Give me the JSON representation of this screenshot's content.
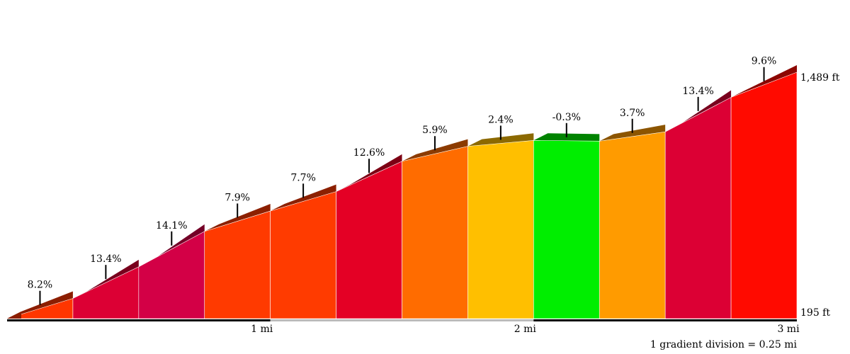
{
  "chart_data": {
    "type": "area",
    "title": "",
    "xlabel": "",
    "ylabel": "",
    "x_unit": "mi",
    "y_unit": "ft",
    "xlim": [
      0,
      3
    ],
    "ylim": [
      195,
      1489
    ],
    "y_labels": [
      "195 ft",
      "1,489 ft"
    ],
    "x_ticks": [
      {
        "value": 1,
        "label": "1 mi"
      },
      {
        "value": 2,
        "label": "2 mi"
      },
      {
        "value": 3,
        "label": "3 mi"
      }
    ],
    "segment_length_mi": 0.25,
    "segments": [
      {
        "start_mi": 0.0,
        "end_mi": 0.25,
        "grade_pct": 8.2,
        "label": "8.2%",
        "color": "#ff3600"
      },
      {
        "start_mi": 0.25,
        "end_mi": 0.5,
        "grade_pct": 13.4,
        "label": "13.4%",
        "color": "#dc0034"
      },
      {
        "start_mi": 0.5,
        "end_mi": 0.75,
        "grade_pct": 14.1,
        "label": "14.1%",
        "color": "#d30046"
      },
      {
        "start_mi": 0.75,
        "end_mi": 1.0,
        "grade_pct": 7.9,
        "label": "7.9%",
        "color": "#ff3a00"
      },
      {
        "start_mi": 1.0,
        "end_mi": 1.25,
        "grade_pct": 7.7,
        "label": "7.7%",
        "color": "#ff3b00"
      },
      {
        "start_mi": 1.25,
        "end_mi": 1.5,
        "grade_pct": 12.6,
        "label": "12.6%",
        "color": "#e40025"
      },
      {
        "start_mi": 1.5,
        "end_mi": 1.75,
        "grade_pct": 5.9,
        "label": "5.9%",
        "color": "#ff6c00"
      },
      {
        "start_mi": 1.75,
        "end_mi": 2.0,
        "grade_pct": 2.4,
        "label": "2.4%",
        "color": "#ffbf00"
      },
      {
        "start_mi": 2.0,
        "end_mi": 2.25,
        "grade_pct": -0.3,
        "label": "-0.3%",
        "color": "#00ee00"
      },
      {
        "start_mi": 2.25,
        "end_mi": 2.5,
        "grade_pct": 3.7,
        "label": "3.7%",
        "color": "#ff9b00"
      },
      {
        "start_mi": 2.5,
        "end_mi": 2.75,
        "grade_pct": 13.4,
        "label": "13.4%",
        "color": "#dc0034"
      },
      {
        "start_mi": 2.75,
        "end_mi": 3.0,
        "grade_pct": 9.6,
        "label": "9.6%",
        "color": "#ff0a00"
      }
    ],
    "elevation_points_ft": [
      195,
      301,
      467,
      653,
      760,
      862,
      1021,
      1100,
      1131,
      1127,
      1176,
      1357,
      1489
    ],
    "footnote": "1 gradient division = 0.25 mi",
    "grid": false,
    "legend": "none"
  }
}
